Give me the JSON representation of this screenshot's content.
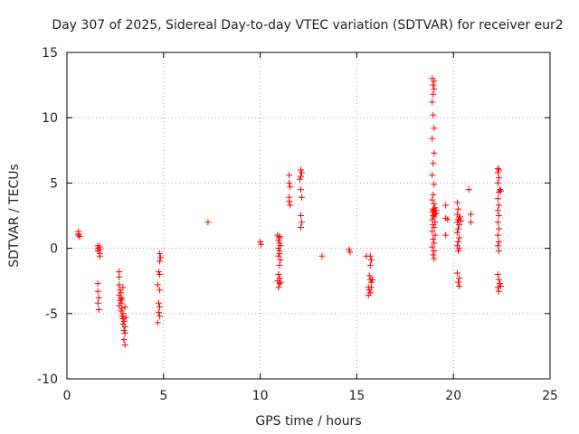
{
  "chart_data": {
    "type": "scatter",
    "title": "Day 307 of 2025, Sidereal Day-to-day VTEC variation (SDTVAR) for receiver eur2",
    "xlabel": "GPS time / hours",
    "ylabel": "SDTVAR / TECUs",
    "xlim": [
      0,
      25
    ],
    "ylim": [
      -10,
      15
    ],
    "xticks": [
      0,
      5,
      10,
      15,
      20,
      25
    ],
    "yticks": [
      -10,
      -5,
      0,
      5,
      10,
      15
    ],
    "xtick_labels": [
      "0",
      "5",
      "10",
      "15",
      "20",
      "25"
    ],
    "ytick_labels": [
      "-10",
      "-5",
      "0",
      "5",
      "10",
      "15"
    ],
    "grid": true,
    "marker": "+",
    "color": "#ff0000",
    "series": [
      {
        "name": "SDTVAR",
        "points": [
          [
            0.6,
            1.3
          ],
          [
            0.6,
            1.1
          ],
          [
            0.6,
            1.0
          ],
          [
            0.65,
            0.9
          ],
          [
            1.6,
            0.2
          ],
          [
            1.6,
            0.0
          ],
          [
            1.6,
            -0.2
          ],
          [
            1.7,
            0.1
          ],
          [
            1.7,
            -0.1
          ],
          [
            1.7,
            -0.4
          ],
          [
            1.7,
            -0.6
          ],
          [
            1.6,
            -2.7
          ],
          [
            1.6,
            -3.3
          ],
          [
            1.65,
            -3.8
          ],
          [
            1.6,
            -4.2
          ],
          [
            1.65,
            -4.7
          ],
          [
            2.7,
            -1.8
          ],
          [
            2.7,
            -2.2
          ],
          [
            2.7,
            -2.8
          ],
          [
            2.75,
            -3.2
          ],
          [
            2.8,
            -3.4
          ],
          [
            2.7,
            -3.6
          ],
          [
            2.8,
            -3.8
          ],
          [
            2.75,
            -4.0
          ],
          [
            2.8,
            -4.2
          ],
          [
            2.7,
            -4.4
          ],
          [
            2.85,
            -4.6
          ],
          [
            2.8,
            -4.8
          ],
          [
            2.9,
            -5.0
          ],
          [
            2.85,
            -5.2
          ],
          [
            2.9,
            -5.4
          ],
          [
            2.95,
            -5.6
          ],
          [
            2.9,
            -5.8
          ],
          [
            3.0,
            -6.0
          ],
          [
            2.95,
            -6.3
          ],
          [
            3.0,
            -6.5
          ],
          [
            2.95,
            -7.0
          ],
          [
            3.0,
            -7.4
          ],
          [
            2.9,
            -3.0
          ],
          [
            3.0,
            -4.5
          ],
          [
            3.05,
            -5.3
          ],
          [
            2.85,
            -3.9
          ],
          [
            4.8,
            -0.4
          ],
          [
            4.85,
            -0.7
          ],
          [
            4.8,
            -1.0
          ],
          [
            4.75,
            -1.8
          ],
          [
            4.8,
            -2.0
          ],
          [
            4.7,
            -2.8
          ],
          [
            4.8,
            -3.2
          ],
          [
            4.75,
            -4.2
          ],
          [
            4.8,
            -4.5
          ],
          [
            4.75,
            -4.9
          ],
          [
            4.8,
            -5.2
          ],
          [
            4.7,
            -5.7
          ],
          [
            7.3,
            2.0
          ],
          [
            10.0,
            0.5
          ],
          [
            10.05,
            0.3
          ],
          [
            10.9,
            1.0
          ],
          [
            11.0,
            0.8
          ],
          [
            10.95,
            0.6
          ],
          [
            11.0,
            0.4
          ],
          [
            11.05,
            0.2
          ],
          [
            10.95,
            0.0
          ],
          [
            11.0,
            -0.2
          ],
          [
            11.0,
            -0.4
          ],
          [
            10.95,
            -0.6
          ],
          [
            11.05,
            -0.9
          ],
          [
            11.0,
            -1.3
          ],
          [
            10.95,
            -2.0
          ],
          [
            11.0,
            -2.3
          ],
          [
            10.9,
            -2.5
          ],
          [
            11.0,
            -2.7
          ],
          [
            10.95,
            -3.0
          ],
          [
            11.05,
            -2.6
          ],
          [
            11.0,
            0.9
          ],
          [
            11.5,
            5.6
          ],
          [
            11.5,
            5.0
          ],
          [
            11.55,
            4.7
          ],
          [
            11.5,
            3.9
          ],
          [
            11.5,
            3.6
          ],
          [
            11.55,
            3.3
          ],
          [
            12.1,
            6.0
          ],
          [
            12.15,
            5.8
          ],
          [
            12.1,
            5.5
          ],
          [
            12.05,
            5.3
          ],
          [
            12.1,
            4.5
          ],
          [
            12.15,
            3.9
          ],
          [
            12.1,
            2.5
          ],
          [
            12.15,
            2.0
          ],
          [
            12.1,
            1.6
          ],
          [
            13.2,
            -0.6
          ],
          [
            14.6,
            -0.1
          ],
          [
            14.65,
            -0.3
          ],
          [
            15.5,
            -0.6
          ],
          [
            15.7,
            -0.6
          ],
          [
            15.75,
            -0.9
          ],
          [
            15.7,
            -1.3
          ],
          [
            15.65,
            -2.1
          ],
          [
            15.7,
            -2.4
          ],
          [
            15.75,
            -2.6
          ],
          [
            15.6,
            -3.0
          ],
          [
            15.65,
            -3.2
          ],
          [
            15.7,
            -3.4
          ],
          [
            15.6,
            -3.6
          ],
          [
            15.8,
            -2.4
          ],
          [
            15.75,
            -3.0
          ],
          [
            18.9,
            13.0
          ],
          [
            19.0,
            12.8
          ],
          [
            18.95,
            12.5
          ],
          [
            19.0,
            12.2
          ],
          [
            18.95,
            11.8
          ],
          [
            18.9,
            11.2
          ],
          [
            18.95,
            10.2
          ],
          [
            19.0,
            9.2
          ],
          [
            18.9,
            8.4
          ],
          [
            19.0,
            7.3
          ],
          [
            18.95,
            6.5
          ],
          [
            18.9,
            5.6
          ],
          [
            19.0,
            4.9
          ],
          [
            18.95,
            4.1
          ],
          [
            18.9,
            3.7
          ],
          [
            19.0,
            3.4
          ],
          [
            19.05,
            3.1
          ],
          [
            18.95,
            3.0
          ],
          [
            19.0,
            2.9
          ],
          [
            18.9,
            2.8
          ],
          [
            19.05,
            2.6
          ],
          [
            18.95,
            2.5
          ],
          [
            19.0,
            2.4
          ],
          [
            18.9,
            2.2
          ],
          [
            19.05,
            2.0
          ],
          [
            18.95,
            1.8
          ],
          [
            19.0,
            1.6
          ],
          [
            18.9,
            1.3
          ],
          [
            19.05,
            1.0
          ],
          [
            18.95,
            0.7
          ],
          [
            19.0,
            0.4
          ],
          [
            18.9,
            0.1
          ],
          [
            19.0,
            -0.2
          ],
          [
            18.95,
            -0.5
          ],
          [
            19.0,
            -0.8
          ],
          [
            19.1,
            2.9
          ],
          [
            19.1,
            2.7
          ],
          [
            19.6,
            3.3
          ],
          [
            19.6,
            2.3
          ],
          [
            19.7,
            2.2
          ],
          [
            19.6,
            1.0
          ],
          [
            20.2,
            3.5
          ],
          [
            20.25,
            3.0
          ],
          [
            20.2,
            2.6
          ],
          [
            20.3,
            2.4
          ],
          [
            20.25,
            2.2
          ],
          [
            20.2,
            2.0
          ],
          [
            20.3,
            1.8
          ],
          [
            20.25,
            1.5
          ],
          [
            20.2,
            1.2
          ],
          [
            20.3,
            0.8
          ],
          [
            20.25,
            0.5
          ],
          [
            20.2,
            0.2
          ],
          [
            20.3,
            0.0
          ],
          [
            20.25,
            -0.2
          ],
          [
            20.2,
            -1.9
          ],
          [
            20.3,
            -2.3
          ],
          [
            20.25,
            -2.6
          ],
          [
            20.3,
            -2.9
          ],
          [
            20.4,
            2.1
          ],
          [
            20.35,
            2.4
          ],
          [
            20.9,
            2.6
          ],
          [
            20.9,
            2.0
          ],
          [
            20.8,
            4.5
          ],
          [
            22.3,
            6.1
          ],
          [
            22.35,
            6.0
          ],
          [
            22.3,
            5.8
          ],
          [
            22.35,
            5.4
          ],
          [
            22.3,
            5.0
          ],
          [
            22.4,
            4.5
          ],
          [
            22.35,
            4.3
          ],
          [
            22.3,
            3.8
          ],
          [
            22.35,
            3.3
          ],
          [
            22.3,
            2.9
          ],
          [
            22.35,
            2.5
          ],
          [
            22.3,
            2.0
          ],
          [
            22.35,
            1.5
          ],
          [
            22.3,
            1.0
          ],
          [
            22.35,
            0.5
          ],
          [
            22.3,
            0.2
          ],
          [
            22.35,
            -0.2
          ],
          [
            22.3,
            -2.0
          ],
          [
            22.35,
            -2.4
          ],
          [
            22.4,
            -2.7
          ],
          [
            22.3,
            -3.0
          ],
          [
            22.35,
            -3.3
          ],
          [
            22.45,
            -2.9
          ],
          [
            22.45,
            4.4
          ]
        ]
      }
    ]
  }
}
